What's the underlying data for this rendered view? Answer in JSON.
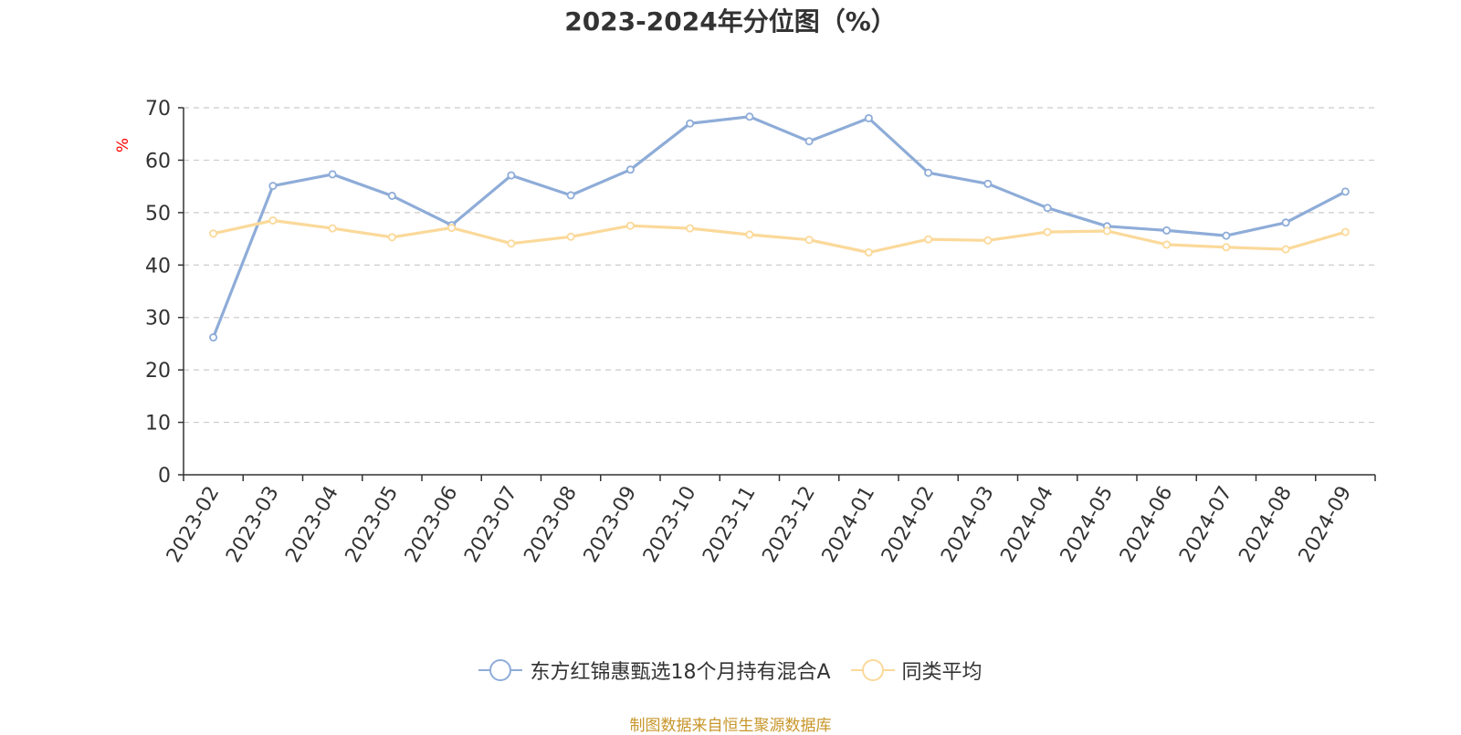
{
  "chart_data": {
    "type": "line",
    "title": "2023-2024年分位图（%）",
    "ylabel": "%",
    "ylim": [
      0,
      70
    ],
    "yticks": [
      0,
      10,
      20,
      30,
      40,
      50,
      60,
      70
    ],
    "grid": true,
    "legend_position": "bottom",
    "categories": [
      "2023-02",
      "2023-03",
      "2023-04",
      "2023-05",
      "2023-06",
      "2023-07",
      "2023-08",
      "2023-09",
      "2023-10",
      "2023-11",
      "2023-12",
      "2024-01",
      "2024-02",
      "2024-03",
      "2024-04",
      "2024-05",
      "2024-06",
      "2024-07",
      "2024-08",
      "2024-09"
    ],
    "series": [
      {
        "name": "东方红锦惠甄选18个月持有混合A",
        "color": "#8eacd8",
        "values": [
          26.2,
          55.1,
          57.3,
          53.2,
          47.6,
          57.1,
          53.3,
          58.2,
          67.0,
          68.3,
          63.6,
          68.0,
          57.6,
          55.5,
          50.9,
          47.4,
          46.6,
          45.6,
          48.1,
          54.0
        ]
      },
      {
        "name": "同类平均",
        "color": "#fbd99a",
        "values": [
          46.0,
          48.5,
          47.0,
          45.3,
          47.1,
          44.1,
          45.4,
          47.5,
          47.0,
          45.8,
          44.8,
          42.4,
          44.9,
          44.7,
          46.3,
          46.5,
          43.9,
          43.4,
          43.0,
          46.3
        ]
      }
    ]
  },
  "footer": {
    "source_note": "制图数据来自恒生聚源数据库"
  }
}
